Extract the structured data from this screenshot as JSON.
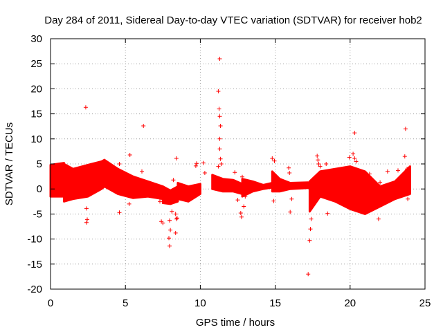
{
  "chart_data": {
    "type": "scatter",
    "title": "Day 284 of 2011, Sidereal Day-to-day VTEC variation (SDTVAR) for receiver hob2",
    "xlabel": "GPS time / hours",
    "ylabel": "SDTVAR / TECUs",
    "xlim": [
      0,
      25
    ],
    "ylim": [
      -20,
      30
    ],
    "x_ticks": [
      0,
      5,
      10,
      15,
      20,
      25
    ],
    "y_ticks": [
      -20,
      -15,
      -10,
      -5,
      0,
      5,
      10,
      15,
      20,
      25,
      30
    ],
    "x_tick_labels": [
      "0",
      "5",
      "10",
      "15",
      "20",
      "25"
    ],
    "y_tick_labels": [
      "-20",
      "-15",
      "-10",
      "-5",
      "0",
      "5",
      "10",
      "15",
      "20",
      "25",
      "30"
    ],
    "grid": true,
    "marker": "+",
    "color": "#ff0000",
    "bands": [
      {
        "name": "band-0-0.9",
        "x": [
          0,
          0.9
        ],
        "lower": [
          -1.5,
          -1.5
        ],
        "upper": [
          4.8,
          5.2
        ]
      },
      {
        "name": "band-0.9-3.6",
        "x": [
          0.9,
          1.5,
          2.5,
          3.4,
          3.6
        ],
        "lower": [
          -2.5,
          -2.0,
          -1.5,
          0.0,
          0.5
        ],
        "upper": [
          5.0,
          4.0,
          4.8,
          5.5,
          5.8
        ]
      },
      {
        "name": "band-3.6-7.5",
        "x": [
          3.6,
          4.5,
          5.5,
          6.5,
          7.5
        ],
        "lower": [
          0.5,
          -1.0,
          -1.8,
          -1.5,
          -2.0
        ],
        "upper": [
          5.8,
          4.0,
          2.5,
          1.5,
          0.5
        ]
      },
      {
        "name": "band-7.5-8.5",
        "x": [
          7.5,
          8.0,
          8.5
        ],
        "lower": [
          -2.8,
          -3.0,
          -2.5
        ],
        "upper": [
          0.5,
          -0.3,
          0.5
        ]
      },
      {
        "name": "band-8.5-10",
        "x": [
          8.5,
          9.2,
          10.0
        ],
        "lower": [
          -2.0,
          -2.5,
          -1.0
        ],
        "upper": [
          1.2,
          0.5,
          1.0
        ]
      },
      {
        "name": "band-10.8-12.8",
        "x": [
          10.8,
          11.5,
          12.2,
          12.8
        ],
        "lower": [
          0.0,
          -0.5,
          -0.5,
          -1.0
        ],
        "upper": [
          2.8,
          2.0,
          1.8,
          1.0
        ]
      },
      {
        "name": "band-12.8-14.8",
        "x": [
          12.8,
          13.5,
          14.2,
          14.8
        ],
        "lower": [
          -1.5,
          -0.5,
          0.0,
          0.3
        ],
        "upper": [
          2.0,
          1.5,
          0.8,
          1.2
        ]
      },
      {
        "name": "band-14.8-17.2",
        "x": [
          14.8,
          15.3,
          16.0,
          17.2
        ],
        "lower": [
          -0.5,
          -0.5,
          0.0,
          0.2
        ],
        "upper": [
          3.5,
          2.0,
          1.2,
          1.3
        ]
      },
      {
        "name": "band-17.3-24",
        "x": [
          17.3,
          18.0,
          19.0,
          20.0,
          21.0,
          22.0,
          23.0,
          24.0
        ],
        "lower": [
          -4.5,
          -1.5,
          -2.5,
          -4.0,
          -5.0,
          -3.5,
          -2.0,
          -1.0
        ],
        "upper": [
          1.5,
          3.5,
          4.0,
          4.5,
          3.5,
          0.5,
          1.5,
          4.5
        ]
      }
    ],
    "points": [
      [
        2.35,
        16.3
      ],
      [
        2.4,
        -3.9
      ],
      [
        2.45,
        -6.1
      ],
      [
        2.4,
        -6.7
      ],
      [
        4.6,
        5.0
      ],
      [
        4.6,
        -4.7
      ],
      [
        5.0,
        1.1
      ],
      [
        5.3,
        6.8
      ],
      [
        5.25,
        -3.0
      ],
      [
        6.2,
        12.6
      ],
      [
        6.1,
        3.5
      ],
      [
        7.4,
        -6.5
      ],
      [
        7.5,
        -6.8
      ],
      [
        7.3,
        -2.5
      ],
      [
        7.95,
        -6.3
      ],
      [
        7.9,
        -9.8
      ],
      [
        7.95,
        -11.4
      ],
      [
        8.0,
        -8.2
      ],
      [
        8.1,
        -4.5
      ],
      [
        8.2,
        1.8
      ],
      [
        8.4,
        6.1
      ],
      [
        8.35,
        -5.0
      ],
      [
        8.4,
        -6.0
      ],
      [
        8.35,
        -8.8
      ],
      [
        8.45,
        -5.8
      ],
      [
        9.7,
        4.6
      ],
      [
        9.75,
        5.1
      ],
      [
        10.2,
        5.2
      ],
      [
        10.3,
        3.2
      ],
      [
        11.3,
        26.0
      ],
      [
        11.2,
        19.5
      ],
      [
        11.25,
        16.0
      ],
      [
        11.3,
        14.5
      ],
      [
        11.35,
        12.6
      ],
      [
        11.3,
        10.0
      ],
      [
        11.3,
        8.0
      ],
      [
        11.35,
        6.0
      ],
      [
        11.4,
        5.0
      ],
      [
        11.2,
        4.5
      ],
      [
        12.3,
        3.3
      ],
      [
        12.5,
        -2.2
      ],
      [
        12.7,
        -4.8
      ],
      [
        12.75,
        -5.6
      ],
      [
        12.8,
        2.4
      ],
      [
        12.9,
        -3.5
      ],
      [
        13.0,
        -1.5
      ],
      [
        14.8,
        6.1
      ],
      [
        14.95,
        5.6
      ],
      [
        14.9,
        -2.4
      ],
      [
        15.9,
        4.2
      ],
      [
        15.95,
        3.2
      ],
      [
        16.0,
        -4.6
      ],
      [
        16.1,
        -2.0
      ],
      [
        17.2,
        -17.0
      ],
      [
        17.3,
        -10.3
      ],
      [
        17.35,
        -8.0
      ],
      [
        17.4,
        -6.0
      ],
      [
        17.8,
        6.6
      ],
      [
        17.85,
        5.8
      ],
      [
        17.9,
        5.0
      ],
      [
        18.0,
        4.5
      ],
      [
        18.4,
        5.0
      ],
      [
        18.5,
        -4.9
      ],
      [
        19.95,
        6.3
      ],
      [
        20.3,
        11.2
      ],
      [
        20.2,
        7.0
      ],
      [
        20.3,
        6.1
      ],
      [
        20.4,
        5.5
      ],
      [
        20.5,
        3.5
      ],
      [
        20.7,
        2.8
      ],
      [
        21.3,
        3.0
      ],
      [
        21.9,
        -6.0
      ],
      [
        22.0,
        1.3
      ],
      [
        22.5,
        3.5
      ],
      [
        23.2,
        3.7
      ],
      [
        23.7,
        12.0
      ],
      [
        23.65,
        6.5
      ],
      [
        23.8,
        4.0
      ],
      [
        23.85,
        -2.0
      ]
    ]
  }
}
